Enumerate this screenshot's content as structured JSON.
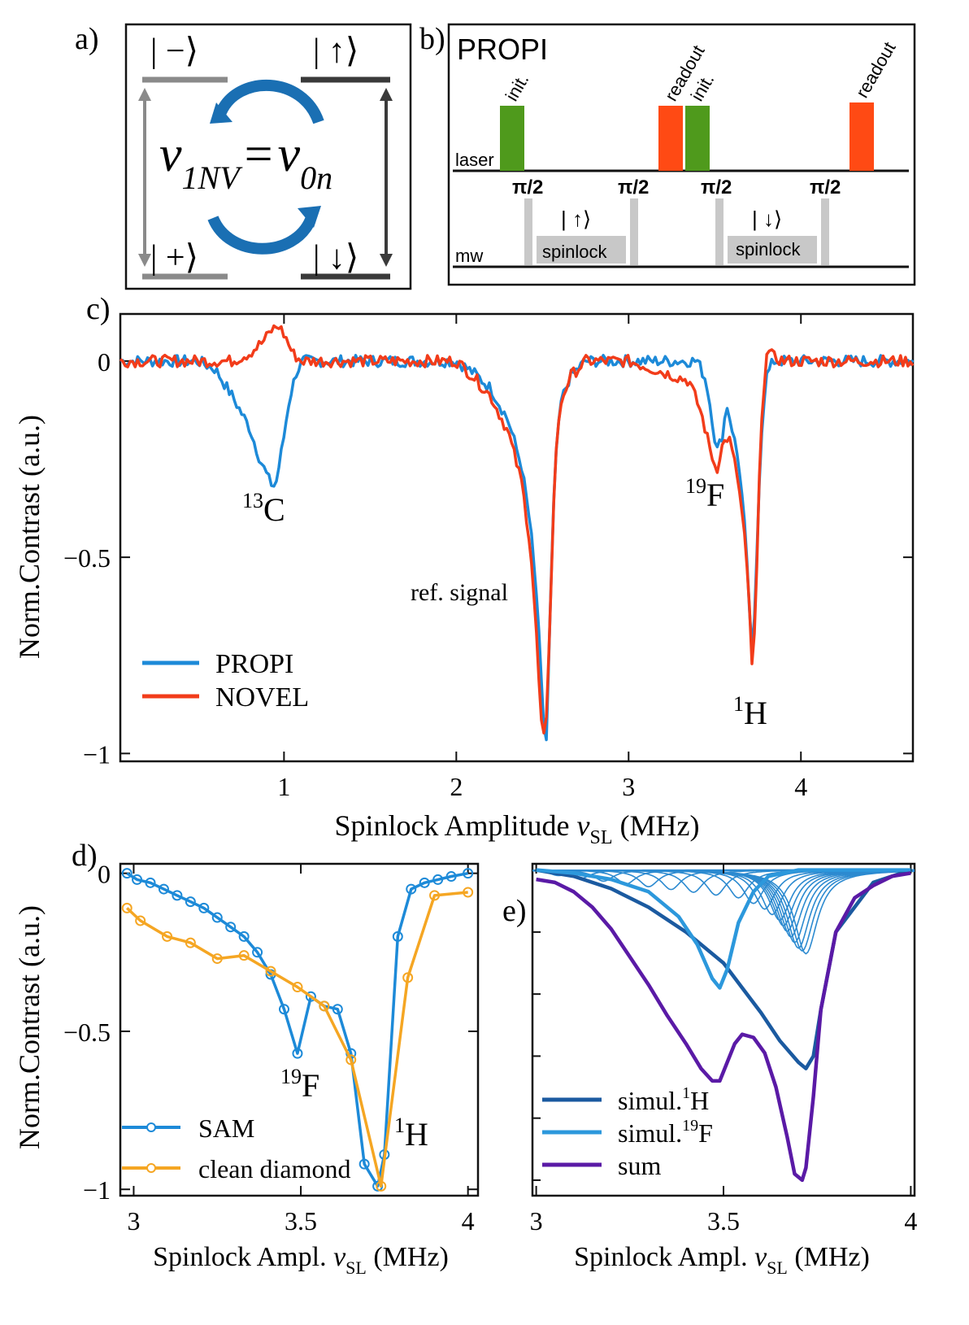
{
  "panel_labels": {
    "a": "a)",
    "b": "b)",
    "c": "c)",
    "d": "d)",
    "e": "e)"
  },
  "panel_a": {
    "state_minus": "| −⟩",
    "state_up": "| ↑⟩",
    "state_plus": "| +⟩",
    "state_down": "| ↓⟩",
    "eq_left": "v",
    "eq_left_sub": "1NV",
    "eq_equals": "=",
    "eq_right": "v",
    "eq_right_sub": "0n",
    "arrow_color": "#1a6fb3"
  },
  "panel_b": {
    "title": "PROPI",
    "laser_label": "laser",
    "mw_label": "mw",
    "init_label": "init.",
    "readout_label": "readout",
    "pi_half": "π/2",
    "spin_up": "| ↑⟩",
    "spin_down": "| ↓⟩",
    "spinlock": "spinlock",
    "green": "#4f9a1c",
    "red": "#ff4a14",
    "grey": "#c8c8c8"
  },
  "chart_data": [
    {
      "id": "c",
      "type": "line",
      "xlabel_main": "Spinlock Amplitude ",
      "xlabel_var": "v",
      "xlabel_sub": "SL",
      "xlabel_unit": " (MHz)",
      "ylabel": "Norm.Contrast (a.u.)",
      "xlim": [
        0.05,
        4.65
      ],
      "ylim": [
        -1.02,
        0.12
      ],
      "xticks": [
        1,
        2,
        3,
        4
      ],
      "xtick_labels": [
        "1",
        "2",
        "3",
        "4"
      ],
      "yticks": [
        0,
        -0.5,
        -1
      ],
      "ytick_labels": [
        "0",
        "−0.5",
        "−1"
      ],
      "legend": "bottom-left",
      "annotations": {
        "c13_sup": "13",
        "c13": "C",
        "f19_sup": "19",
        "f19": "F",
        "h1_sup": "1",
        "h1": "H",
        "ref": "ref. signal"
      },
      "series": [
        {
          "name": "PROPI",
          "color": "#1d8ad8",
          "x": [
            0.05,
            0.5,
            0.6,
            0.7,
            0.8,
            0.86,
            0.92,
            0.95,
            0.99,
            1.03,
            1.07,
            1.11,
            1.2,
            1.6,
            2.0,
            2.1,
            2.2,
            2.3,
            2.38,
            2.43,
            2.47,
            2.5,
            2.52,
            2.54,
            2.56,
            2.58,
            2.61,
            2.66,
            2.75,
            3.0,
            3.4,
            3.45,
            3.49,
            3.51,
            3.54,
            3.57,
            3.6,
            3.64,
            3.67,
            3.7,
            3.72,
            3.74,
            3.76,
            3.78,
            3.8,
            3.84,
            3.9,
            4.0,
            4.65
          ],
          "y": [
            0.0,
            0.0,
            -0.02,
            -0.09,
            -0.17,
            -0.25,
            -0.31,
            -0.32,
            -0.22,
            -0.1,
            -0.03,
            0.0,
            0.0,
            0.0,
            0.0,
            -0.03,
            -0.07,
            -0.15,
            -0.27,
            -0.42,
            -0.62,
            -0.88,
            -1.0,
            -0.72,
            -0.42,
            -0.23,
            -0.1,
            -0.04,
            0.0,
            0.0,
            0.0,
            -0.05,
            -0.16,
            -0.23,
            -0.2,
            -0.11,
            -0.17,
            -0.26,
            -0.4,
            -0.62,
            -0.78,
            -0.55,
            -0.28,
            -0.12,
            -0.04,
            0.0,
            0.0,
            0.0,
            0.0
          ]
        },
        {
          "name": "NOVEL",
          "color": "#f23c1a",
          "x": [
            0.05,
            0.7,
            0.8,
            0.88,
            0.93,
            0.97,
            1.01,
            1.05,
            1.1,
            1.2,
            1.6,
            2.0,
            2.1,
            2.2,
            2.3,
            2.38,
            2.43,
            2.46,
            2.48,
            2.5,
            2.52,
            2.54,
            2.56,
            2.58,
            2.61,
            2.66,
            2.75,
            3.0,
            3.35,
            3.42,
            3.47,
            3.51,
            3.54,
            3.58,
            3.63,
            3.67,
            3.7,
            3.72,
            3.74,
            3.76,
            3.78,
            3.8,
            3.84,
            3.9,
            4.0,
            4.65
          ],
          "y": [
            0.0,
            0.0,
            0.02,
            0.05,
            0.08,
            0.09,
            0.06,
            0.02,
            0.0,
            0.0,
            0.0,
            0.0,
            -0.04,
            -0.09,
            -0.18,
            -0.31,
            -0.47,
            -0.66,
            -0.82,
            -0.97,
            -0.95,
            -0.7,
            -0.42,
            -0.22,
            -0.1,
            -0.04,
            0.0,
            0.0,
            -0.05,
            -0.13,
            -0.22,
            -0.28,
            -0.22,
            -0.19,
            -0.29,
            -0.43,
            -0.62,
            -0.81,
            -0.6,
            -0.28,
            -0.1,
            0.03,
            0.01,
            0.0,
            0.0,
            0.0
          ]
        }
      ]
    },
    {
      "id": "d",
      "type": "line",
      "xlabel_main": "Spinlock Ampl. ",
      "xlabel_var": "v",
      "xlabel_sub": "SL",
      "xlabel_unit": " (MHz)",
      "ylabel": "Norm.Contrast (a.u.)",
      "xlim": [
        2.96,
        4.03
      ],
      "ylim": [
        -1.02,
        0.03
      ],
      "xticks": [
        3,
        3.5,
        4
      ],
      "xtick_labels": [
        "3",
        "3.5",
        "4"
      ],
      "yticks": [
        0,
        -0.5,
        -1
      ],
      "ytick_labels": [
        "0",
        "−0.5",
        "−1"
      ],
      "legend": "bottom-left",
      "annotations": {
        "f19_sup": "19",
        "f19": "F",
        "h1_sup": "1",
        "h1": "H"
      },
      "series": [
        {
          "name": "SAM",
          "color": "#1d8ad8",
          "markers": true,
          "x": [
            2.98,
            3.01,
            3.05,
            3.09,
            3.13,
            3.17,
            3.21,
            3.25,
            3.29,
            3.33,
            3.37,
            3.41,
            3.45,
            3.49,
            3.53,
            3.57,
            3.61,
            3.65,
            3.69,
            3.73,
            3.75,
            3.79,
            3.83,
            3.87,
            3.91,
            3.95,
            4.0
          ],
          "y": [
            0.0,
            -0.02,
            -0.03,
            -0.05,
            -0.07,
            -0.09,
            -0.11,
            -0.14,
            -0.17,
            -0.2,
            -0.25,
            -0.32,
            -0.43,
            -0.57,
            -0.39,
            -0.42,
            -0.43,
            -0.57,
            -0.92,
            -0.99,
            -0.89,
            -0.2,
            -0.05,
            -0.03,
            -0.02,
            -0.01,
            0.0
          ]
        },
        {
          "name": "clean diamond",
          "color": "#f5a623",
          "markers": true,
          "x": [
            2.98,
            3.02,
            3.1,
            3.17,
            3.25,
            3.33,
            3.41,
            3.49,
            3.57,
            3.65,
            3.74,
            3.82,
            3.9,
            4.0
          ],
          "y": [
            -0.11,
            -0.15,
            -0.2,
            -0.22,
            -0.27,
            -0.26,
            -0.31,
            -0.36,
            -0.42,
            -0.59,
            -0.99,
            -0.33,
            -0.07,
            -0.06
          ]
        }
      ]
    },
    {
      "id": "e",
      "type": "line",
      "xlabel_main": "Spinlock Ampl. ",
      "xlabel_var": "v",
      "xlabel_sub": "SL",
      "xlabel_unit": " (MHz)",
      "ylabel": "",
      "xlim": [
        2.99,
        4.01
      ],
      "ylim": [
        -1.05,
        0.02
      ],
      "xticks": [
        3,
        3.5,
        4
      ],
      "xtick_labels": [
        "3",
        "3.5",
        "4"
      ],
      "legend": "bottom-left",
      "series": [
        {
          "name": "simul.",
          "name_sup": "1",
          "name_el": "H",
          "color": "#1b5aa0",
          "x": [
            3.0,
            3.1,
            3.2,
            3.3,
            3.4,
            3.5,
            3.55,
            3.6,
            3.65,
            3.7,
            3.72,
            3.74,
            3.76,
            3.8,
            3.9,
            4.0
          ],
          "y": [
            0.0,
            -0.02,
            -0.06,
            -0.12,
            -0.2,
            -0.3,
            -0.38,
            -0.46,
            -0.55,
            -0.62,
            -0.64,
            -0.6,
            -0.45,
            -0.2,
            -0.04,
            0.0
          ]
        },
        {
          "name": "simul.",
          "name_sup": "19",
          "name_el": "F",
          "color": "#2c98dc",
          "x": [
            3.0,
            3.1,
            3.2,
            3.3,
            3.38,
            3.43,
            3.47,
            3.49,
            3.51,
            3.54,
            3.58,
            3.62,
            3.7,
            4.0
          ],
          "y": [
            0.0,
            -0.01,
            -0.03,
            -0.07,
            -0.15,
            -0.24,
            -0.35,
            -0.38,
            -0.32,
            -0.17,
            -0.07,
            -0.02,
            0.0,
            0.0
          ]
        },
        {
          "name": "sum",
          "color": "#5a1aa6",
          "x": [
            3.0,
            3.05,
            3.1,
            3.15,
            3.2,
            3.25,
            3.3,
            3.35,
            3.4,
            3.44,
            3.47,
            3.49,
            3.51,
            3.53,
            3.55,
            3.58,
            3.61,
            3.64,
            3.67,
            3.69,
            3.71,
            3.72,
            3.74,
            3.76,
            3.8,
            3.85,
            3.9,
            3.95,
            4.0
          ],
          "y": [
            -0.03,
            -0.04,
            -0.07,
            -0.12,
            -0.19,
            -0.28,
            -0.37,
            -0.47,
            -0.56,
            -0.64,
            -0.68,
            -0.68,
            -0.62,
            -0.56,
            -0.53,
            -0.54,
            -0.59,
            -0.7,
            -0.86,
            -0.98,
            -1.0,
            -0.96,
            -0.73,
            -0.45,
            -0.2,
            -0.09,
            -0.05,
            -0.02,
            -0.01
          ]
        }
      ],
      "background_lines": {
        "color": "#2c8ad0",
        "centers": [
          3.06,
          3.12,
          3.18,
          3.24,
          3.3,
          3.36,
          3.42,
          3.48,
          3.54,
          3.58,
          3.61,
          3.63,
          3.65,
          3.66,
          3.67,
          3.68,
          3.69,
          3.7,
          3.71,
          3.72
        ],
        "depths": [
          0.02,
          0.03,
          0.04,
          0.05,
          0.06,
          0.07,
          0.08,
          0.09,
          0.1,
          0.12,
          0.14,
          0.16,
          0.18,
          0.2,
          0.22,
          0.24,
          0.26,
          0.28,
          0.29,
          0.3
        ]
      }
    }
  ]
}
